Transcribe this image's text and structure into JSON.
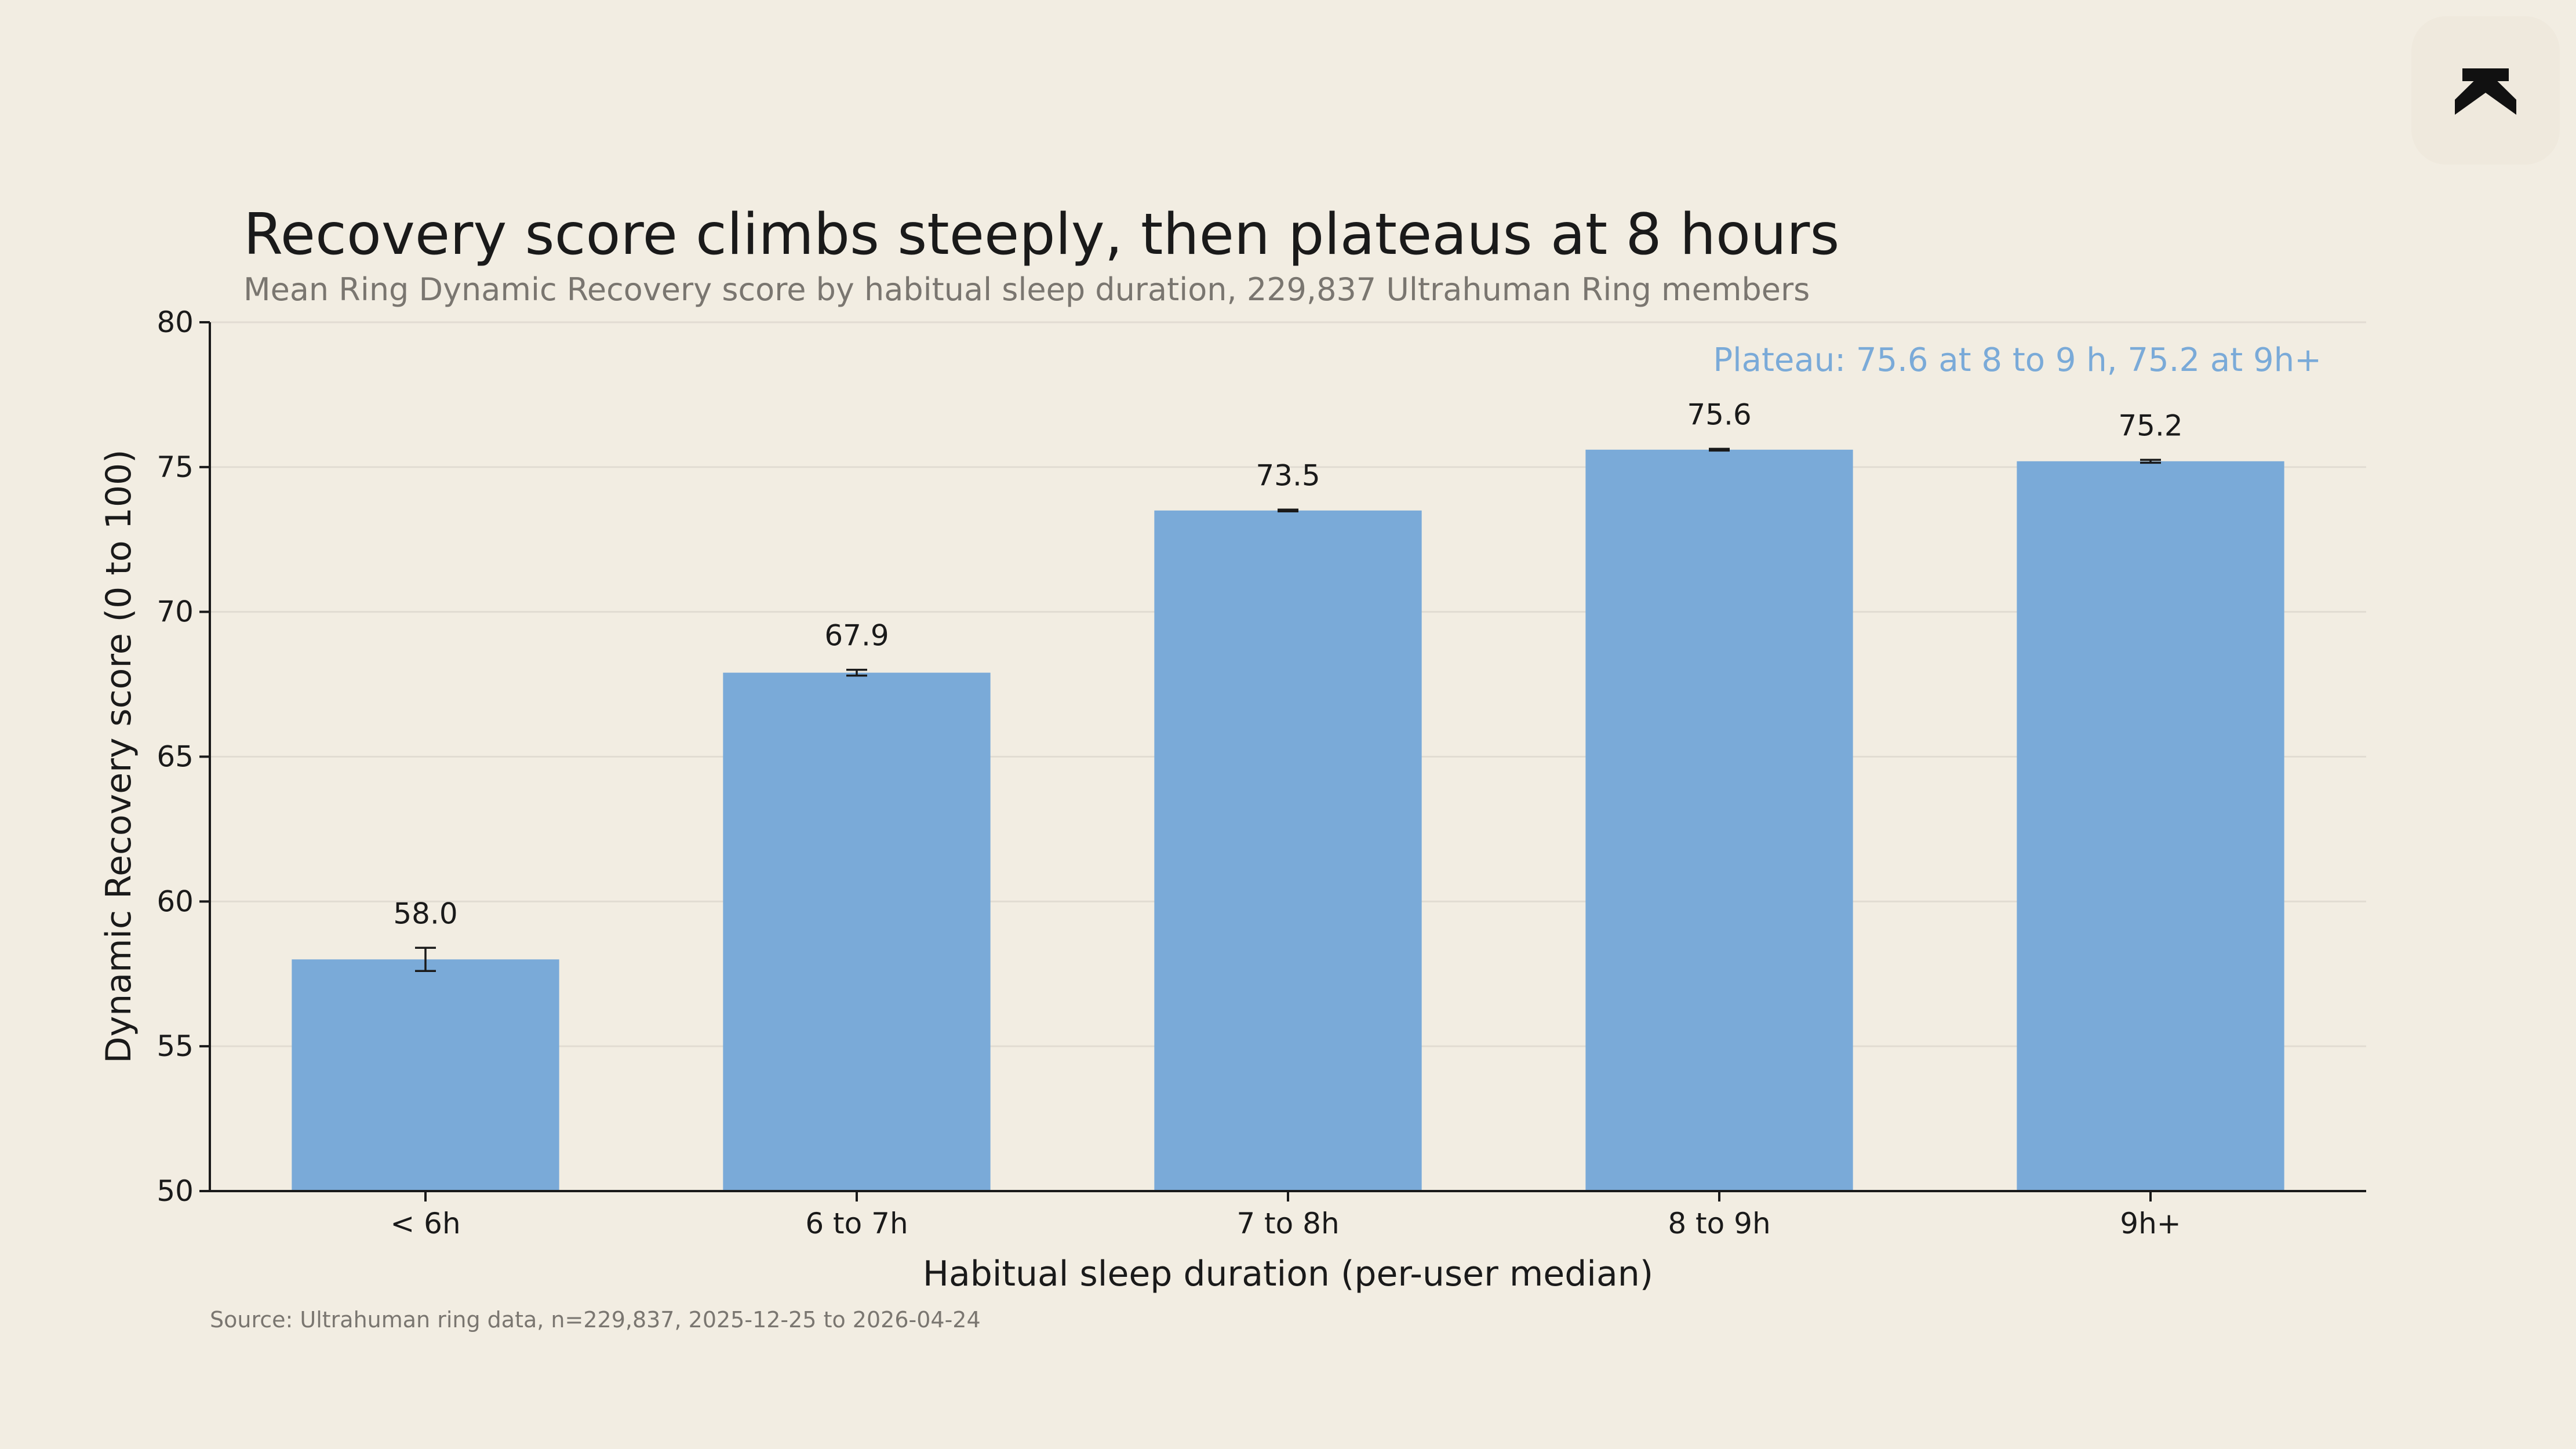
{
  "brand": {
    "logo_icon": "ultrahuman-logo-icon"
  },
  "colors": {
    "bar": "#7aaad8",
    "annotation": "#7aaad8",
    "background": "#f2ede2",
    "logo_bg": "#efe9dd"
  },
  "chart_data": {
    "type": "bar",
    "title": "Recovery score climbs steeply, then plateaus at 8 hours",
    "subtitle": "Mean Ring Dynamic Recovery score by habitual sleep duration, 229,837 Ultrahuman Ring members",
    "xlabel": "Habitual sleep duration (per-user median)",
    "ylabel": "Dynamic Recovery score (0 to 100)",
    "categories": [
      "< 6h",
      "6 to 7h",
      "7 to 8h",
      "8 to 9h",
      "9h+"
    ],
    "values": [
      58.0,
      67.9,
      73.5,
      75.6,
      75.2
    ],
    "value_labels": [
      "58.0",
      "67.9",
      "73.5",
      "75.6",
      "75.2"
    ],
    "error_bars": [
      0.4,
      0.1,
      0.03,
      0.03,
      0.05
    ],
    "ylim": [
      50,
      80
    ],
    "yticks": [
      50,
      55,
      60,
      65,
      70,
      75,
      80
    ],
    "grid": true,
    "annotation": "Plateau: 75.6 at 8 to 9 h, 75.2 at 9h+",
    "source": "Source: Ultrahuman ring data, n=229,837, 2025-12-25 to 2026-04-24"
  }
}
